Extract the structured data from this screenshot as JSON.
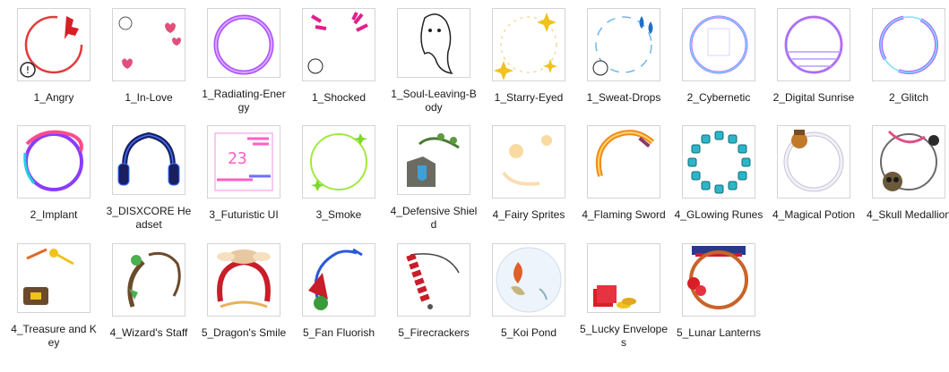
{
  "files": [
    {
      "name": "1_Angry",
      "icon": "angry-frame-icon"
    },
    {
      "name": "1_In-Love",
      "icon": "in-love-frame-icon"
    },
    {
      "name": "1_Radiating-Energy",
      "icon": "radiating-energy-frame-icon"
    },
    {
      "name": "1_Shocked",
      "icon": "shocked-frame-icon"
    },
    {
      "name": "1_Soul-Leaving-Body",
      "icon": "soul-leaving-body-frame-icon"
    },
    {
      "name": "1_Starry-Eyed",
      "icon": "starry-eyed-frame-icon"
    },
    {
      "name": "1_Sweat-Drops",
      "icon": "sweat-drops-frame-icon"
    },
    {
      "name": "2_Cybernetic",
      "icon": "cybernetic-frame-icon"
    },
    {
      "name": "2_Digital Sunrise",
      "icon": "digital-sunrise-frame-icon"
    },
    {
      "name": "2_Glitch",
      "icon": "glitch-frame-icon"
    },
    {
      "name": "2_Implant",
      "icon": "implant-frame-icon"
    },
    {
      "name": "3_DISXCORE Headset",
      "icon": "headset-frame-icon"
    },
    {
      "name": "3_Futuristic UI",
      "icon": "futuristic-ui-frame-icon"
    },
    {
      "name": "3_Smoke",
      "icon": "smoke-frame-icon"
    },
    {
      "name": "4_Defensive Shield",
      "icon": "defensive-shield-frame-icon"
    },
    {
      "name": "4_Fairy Sprites",
      "icon": "fairy-sprites-frame-icon"
    },
    {
      "name": "4_Flaming Sword",
      "icon": "flaming-sword-frame-icon"
    },
    {
      "name": "4_GLowing Runes",
      "icon": "glowing-runes-frame-icon"
    },
    {
      "name": "4_Magical Potion",
      "icon": "magical-potion-frame-icon"
    },
    {
      "name": "4_Skull Medallion",
      "icon": "skull-medallion-frame-icon"
    },
    {
      "name": "4_Treasure and Key",
      "icon": "treasure-key-frame-icon"
    },
    {
      "name": "4_Wizard's Staff",
      "icon": "wizard-staff-frame-icon"
    },
    {
      "name": "5_Dragon's Smile",
      "icon": "dragon-smile-frame-icon"
    },
    {
      "name": "5_Fan Fluorish",
      "icon": "fan-flourish-frame-icon"
    },
    {
      "name": "5_Firecrackers",
      "icon": "firecrackers-frame-icon"
    },
    {
      "name": "5_Koi Pond",
      "icon": "koi-pond-frame-icon"
    },
    {
      "name": "5_Lucky Envelopes",
      "icon": "lucky-envelopes-frame-icon"
    },
    {
      "name": "5_Lunar Lanterns",
      "icon": "lunar-lanterns-frame-icon"
    }
  ]
}
